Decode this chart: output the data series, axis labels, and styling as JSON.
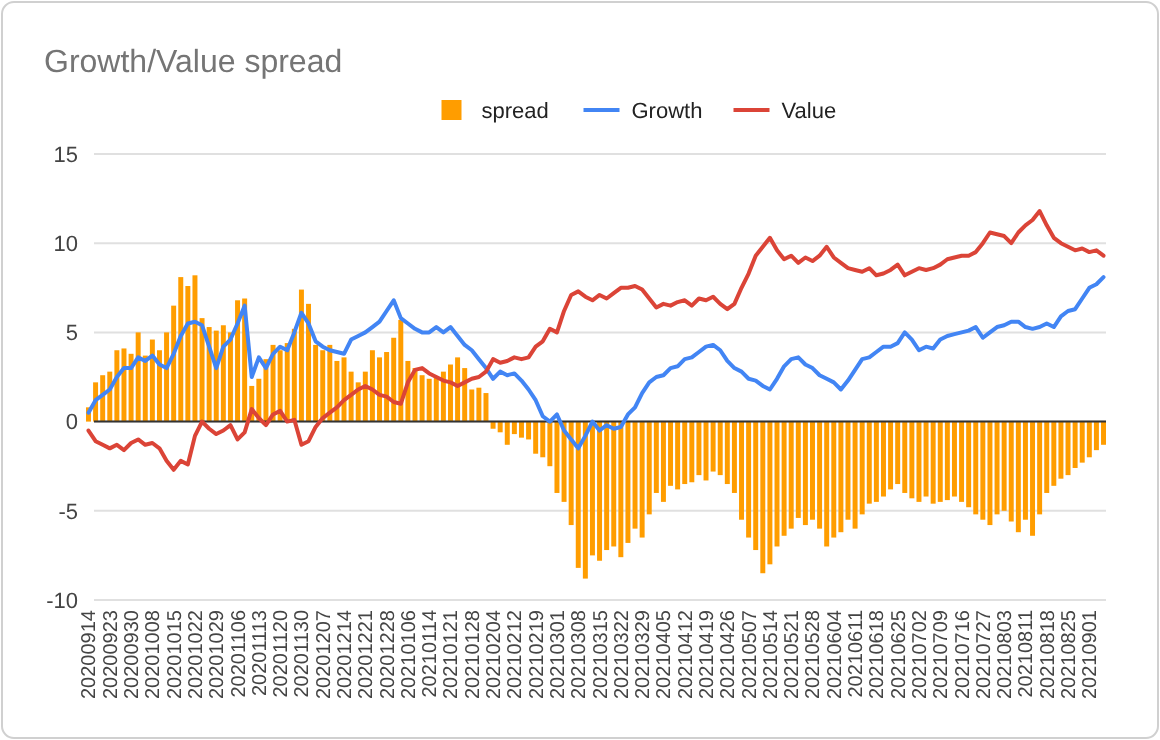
{
  "chart_data": {
    "type": "bar",
    "title": "Growth/Value spread",
    "categories": [
      "20200914",
      null,
      null,
      "20200923",
      null,
      null,
      "20200930",
      null,
      null,
      "20201008",
      null,
      null,
      "20201015",
      null,
      null,
      "20201022",
      null,
      null,
      "20201029",
      null,
      null,
      "20201106",
      null,
      null,
      "20201113",
      null,
      null,
      "20201120",
      null,
      null,
      "20201130",
      null,
      null,
      "20201207",
      null,
      null,
      "20201214",
      null,
      null,
      "20201221",
      null,
      null,
      "20201228",
      null,
      null,
      "20210106",
      null,
      null,
      "20210114",
      null,
      null,
      "20210121",
      null,
      null,
      "20210128",
      null,
      null,
      "20210204",
      null,
      null,
      "20210212",
      null,
      null,
      "20210219",
      null,
      null,
      "20210301",
      null,
      null,
      "20210308",
      null,
      null,
      "20210315",
      null,
      null,
      "20210322",
      null,
      null,
      "20210329",
      null,
      null,
      "20210405",
      null,
      null,
      "20210412",
      null,
      null,
      "20210419",
      null,
      null,
      "20210426",
      null,
      null,
      "20210507",
      null,
      null,
      "20210514",
      null,
      null,
      "20210521",
      null,
      null,
      "20210528",
      null,
      null,
      "20210604",
      null,
      null,
      "20210611",
      null,
      null,
      "20210618",
      null,
      null,
      "20210625",
      null,
      null,
      "20210702",
      null,
      null,
      "20210709",
      null,
      null,
      "20210716",
      null,
      null,
      "20210727",
      null,
      null,
      "20210803",
      null,
      null,
      "20210811",
      null,
      null,
      "20210818",
      null,
      null,
      "20210825",
      null,
      null,
      "20210901",
      null,
      null
    ],
    "series": [
      {
        "name": "spread",
        "color": "#ff9d00",
        "values": [
          0.8,
          2.2,
          2.6,
          2.8,
          4.0,
          4.1,
          3.8,
          5.0,
          3.7,
          4.6,
          4.0,
          5.0,
          6.5,
          8.1,
          7.6,
          8.2,
          5.8,
          5.3,
          5.1,
          5.4,
          5.0,
          6.8,
          6.9,
          2.0,
          2.4,
          3.5,
          4.3,
          4.0,
          4.4,
          5.2,
          7.4,
          6.6,
          4.3,
          4.0,
          4.3,
          3.4,
          3.6,
          2.8,
          2.2,
          2.8,
          4.0,
          3.6,
          3.9,
          4.7,
          5.7,
          3.4,
          3.0,
          2.6,
          2.4,
          2.5,
          2.8,
          3.2,
          3.6,
          3.0,
          1.8,
          1.9,
          1.6,
          -0.4,
          -0.6,
          -1.3,
          -0.7,
          -0.9,
          -1.0,
          -1.8,
          -2.0,
          -2.5,
          -4.0,
          -4.5,
          -5.8,
          -8.2,
          -8.8,
          -7.5,
          -7.8,
          -7.2,
          -7.0,
          -7.6,
          -6.8,
          -6.0,
          -6.5,
          -5.2,
          -4.0,
          -4.5,
          -3.6,
          -3.8,
          -3.5,
          -3.4,
          -3.0,
          -3.3,
          -2.8,
          -3.0,
          -3.5,
          -4.0,
          -5.5,
          -6.5,
          -7.2,
          -8.5,
          -8.0,
          -7.0,
          -6.4,
          -6.0,
          -5.4,
          -5.8,
          -5.5,
          -6.0,
          -7.0,
          -6.5,
          -6.2,
          -5.5,
          -6.0,
          -5.2,
          -4.6,
          -4.5,
          -4.2,
          -3.8,
          -3.5,
          -4.0,
          -4.3,
          -4.5,
          -4.2,
          -4.6,
          -4.5,
          -4.4,
          -4.2,
          -4.5,
          -4.8,
          -5.2,
          -5.5,
          -5.8,
          -5.2,
          -5.0,
          -5.6,
          -6.2,
          -5.5,
          -6.4,
          -5.2,
          -4.0,
          -3.6,
          -3.2,
          -3.0,
          -2.6,
          -2.3,
          -2.0,
          -1.6,
          -1.3
        ]
      },
      {
        "name": "Growth",
        "type": "line",
        "color": "#4285f4",
        "values": [
          0.5,
          1.2,
          1.5,
          1.8,
          2.5,
          3.0,
          3.0,
          3.6,
          3.4,
          3.7,
          3.2,
          3.0,
          3.8,
          4.8,
          5.5,
          5.6,
          5.4,
          4.2,
          3.0,
          4.2,
          4.6,
          5.5,
          6.5,
          2.5,
          3.6,
          3.0,
          3.8,
          4.2,
          4.0,
          5.0,
          6.1,
          5.5,
          4.5,
          4.2,
          4.0,
          3.9,
          3.8,
          4.6,
          4.8,
          5.0,
          5.3,
          5.6,
          6.2,
          6.8,
          5.8,
          5.5,
          5.2,
          5.0,
          5.0,
          5.3,
          5.0,
          5.3,
          4.8,
          4.3,
          4.0,
          3.5,
          3.0,
          2.4,
          2.8,
          2.6,
          2.7,
          2.3,
          1.8,
          1.2,
          0.3,
          0.0,
          0.4,
          -0.5,
          -1.0,
          -1.5,
          -0.8,
          0.0,
          -0.5,
          -0.2,
          -0.4,
          -0.3,
          0.4,
          0.8,
          1.6,
          2.2,
          2.5,
          2.6,
          3.0,
          3.1,
          3.5,
          3.6,
          3.9,
          4.2,
          4.3,
          4.0,
          3.4,
          3.0,
          2.8,
          2.4,
          2.3,
          2.0,
          1.8,
          2.4,
          3.1,
          3.5,
          3.6,
          3.2,
          3.0,
          2.6,
          2.4,
          2.2,
          1.8,
          2.3,
          2.9,
          3.5,
          3.6,
          3.9,
          4.2,
          4.2,
          4.4,
          5.0,
          4.6,
          4.0,
          4.2,
          4.1,
          4.6,
          4.8,
          4.9,
          5.0,
          5.1,
          5.3,
          4.7,
          5.0,
          5.3,
          5.4,
          5.6,
          5.6,
          5.3,
          5.2,
          5.3,
          5.5,
          5.3,
          5.9,
          6.2,
          6.3,
          6.9,
          7.5,
          7.7,
          8.1
        ]
      },
      {
        "name": "Value",
        "type": "line",
        "color": "#db4437",
        "values": [
          -0.5,
          -1.1,
          -1.3,
          -1.5,
          -1.3,
          -1.6,
          -1.2,
          -1.0,
          -1.3,
          -1.2,
          -1.5,
          -2.2,
          -2.7,
          -2.2,
          -2.4,
          -0.8,
          0.0,
          -0.4,
          -0.7,
          -0.5,
          -0.2,
          -1.0,
          -0.6,
          0.7,
          0.2,
          -0.2,
          0.4,
          0.6,
          0.0,
          0.1,
          -1.3,
          -1.1,
          -0.3,
          0.2,
          0.5,
          0.8,
          1.2,
          1.5,
          1.8,
          2.0,
          1.8,
          1.5,
          1.4,
          1.1,
          1.0,
          2.2,
          2.9,
          3.0,
          2.7,
          2.5,
          2.3,
          2.2,
          2.0,
          2.2,
          2.4,
          2.5,
          2.8,
          3.5,
          3.3,
          3.4,
          3.6,
          3.5,
          3.6,
          4.2,
          4.5,
          5.2,
          5.0,
          6.2,
          7.1,
          7.3,
          7.0,
          6.8,
          7.1,
          6.9,
          7.2,
          7.5,
          7.5,
          7.6,
          7.4,
          6.9,
          6.4,
          6.6,
          6.5,
          6.7,
          6.8,
          6.5,
          6.9,
          6.8,
          7.0,
          6.6,
          6.3,
          6.6,
          7.5,
          8.3,
          9.3,
          9.8,
          10.3,
          9.6,
          9.1,
          9.3,
          8.9,
          9.2,
          9.0,
          9.3,
          9.8,
          9.2,
          8.9,
          8.6,
          8.5,
          8.4,
          8.6,
          8.2,
          8.3,
          8.5,
          8.8,
          8.2,
          8.4,
          8.6,
          8.5,
          8.6,
          8.8,
          9.1,
          9.2,
          9.3,
          9.3,
          9.5,
          10.0,
          10.6,
          10.5,
          10.4,
          10.0,
          10.6,
          11.0,
          11.3,
          11.8,
          11.0,
          10.3,
          10.0,
          9.8,
          9.6,
          9.7,
          9.5,
          9.6,
          9.3
        ]
      }
    ],
    "ylim": [
      -10,
      15
    ],
    "yticks": [
      -10,
      -5,
      0,
      5,
      10,
      15
    ],
    "grid": "y",
    "legend": "top"
  }
}
